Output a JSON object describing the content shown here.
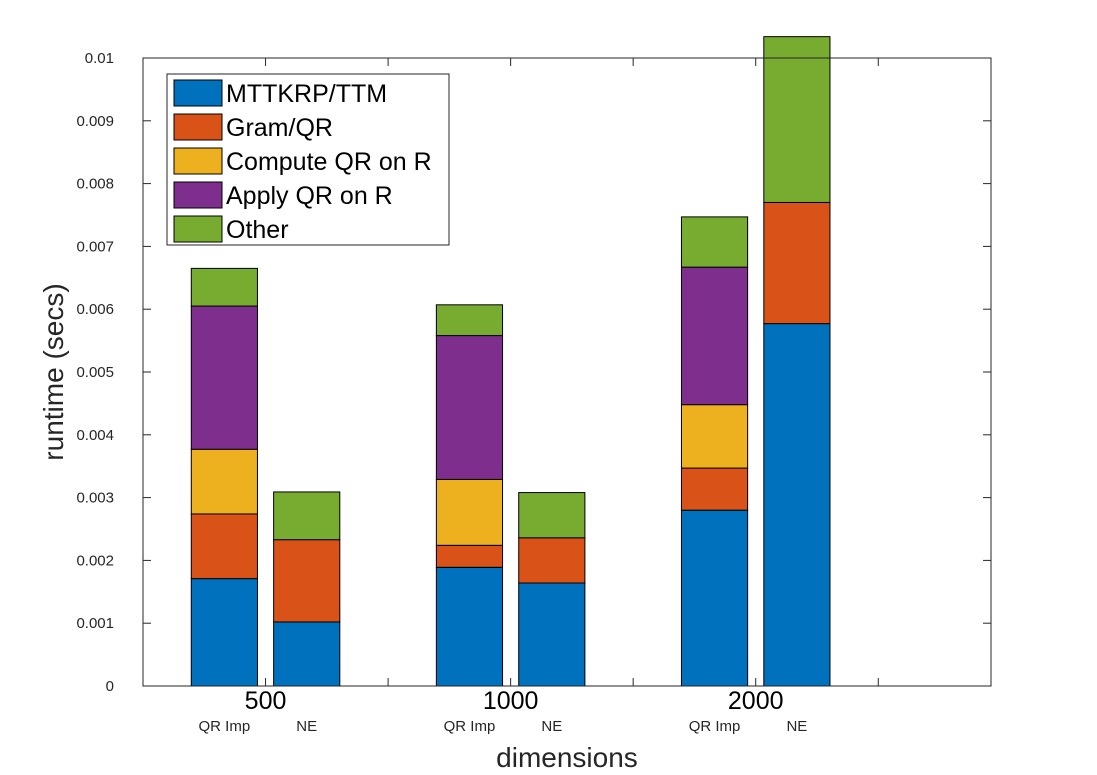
{
  "chart_data": {
    "type": "bar",
    "stacked": true,
    "xlabel": "dimensions",
    "ylabel": "runtime (secs)",
    "ylim": [
      0,
      0.01
    ],
    "yticks": [
      "0",
      "0.001",
      "0.002",
      "0.003",
      "0.004",
      "0.005",
      "0.006",
      "0.007",
      "0.008",
      "0.009",
      "0.01"
    ],
    "groups": [
      {
        "label": "500",
        "bars": [
          {
            "label": "QR Imp",
            "values": [
              0.00171,
              0.00103,
              0.00103,
              0.00228,
              0.0006
            ]
          },
          {
            "label": "NE",
            "values": [
              0.00102,
              0.00131,
              0,
              0,
              0.00076
            ]
          }
        ]
      },
      {
        "label": "1000",
        "bars": [
          {
            "label": "QR Imp",
            "values": [
              0.00189,
              0.00035,
              0.00105,
              0.00229,
              0.00049
            ]
          },
          {
            "label": "NE",
            "values": [
              0.00164,
              0.00072,
              0,
              0,
              0.00072
            ]
          }
        ]
      },
      {
        "label": "2000",
        "bars": [
          {
            "label": "QR Imp",
            "values": [
              0.0028,
              0.00067,
              0.00101,
              0.00219,
              0.0008
            ]
          },
          {
            "label": "NE",
            "values": [
              0.00577,
              0.00193,
              0,
              0,
              0.00264
            ]
          }
        ]
      }
    ],
    "series": [
      {
        "name": "MTTKRP/TTM",
        "color": "#0072BD"
      },
      {
        "name": "Gram/QR",
        "color": "#D95319"
      },
      {
        "name": "Compute QR on R",
        "color": "#EDB120"
      },
      {
        "name": "Apply QR on R",
        "color": "#7E2F8E"
      },
      {
        "name": "Other",
        "color": "#77AC30"
      }
    ],
    "legend_position": "top-left",
    "grid": false
  }
}
